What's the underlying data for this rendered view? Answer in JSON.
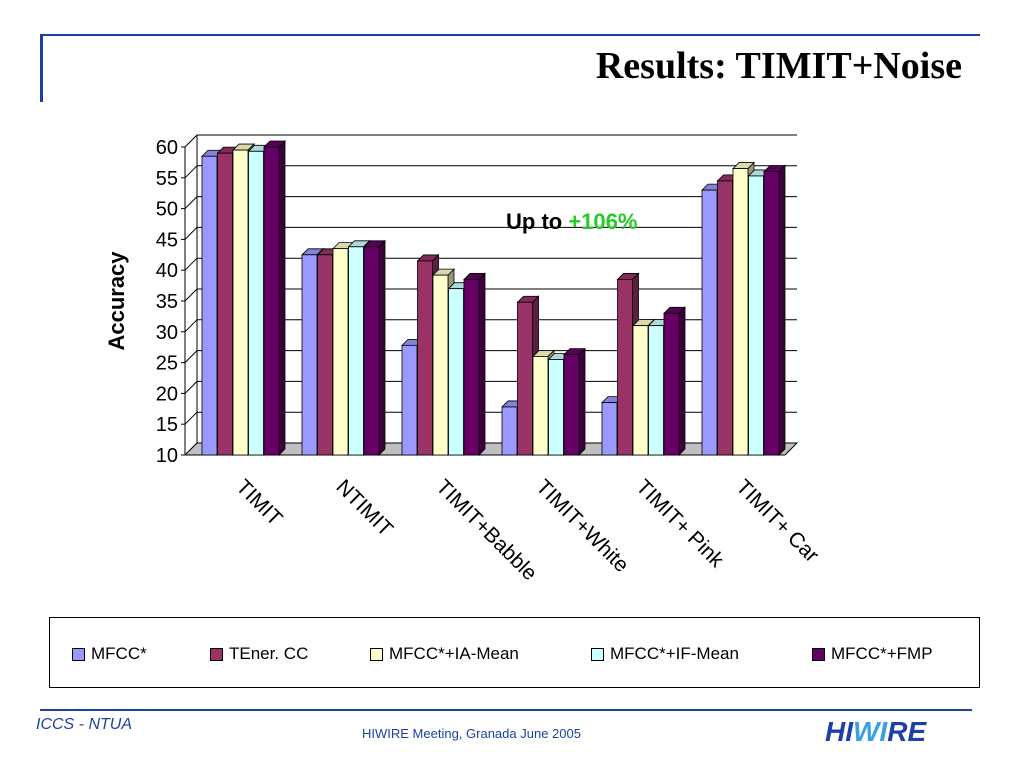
{
  "slide": {
    "title": "Results: TIMIT+Noise"
  },
  "chart_data": {
    "type": "bar",
    "title": "",
    "xlabel": "",
    "ylabel": "Accuracy",
    "ylim": [
      10,
      60
    ],
    "yticks": [
      10,
      15,
      20,
      25,
      30,
      35,
      40,
      45,
      50,
      55,
      60
    ],
    "grid": true,
    "legend_position": "bottom",
    "categories": [
      "TIMIT",
      "NTIMIT",
      "TIMIT+Babble",
      "TIMIT+White",
      "TIMIT+ Pink",
      "TIMIT+ Car"
    ],
    "series": [
      {
        "name": "MFCC*",
        "color": "#9999ff",
        "values": [
          58.5,
          42.5,
          27.8,
          17.8,
          18.5,
          53.0
        ]
      },
      {
        "name": "TEner. CC",
        "color": "#993366",
        "values": [
          59.0,
          42.5,
          41.5,
          34.8,
          38.5,
          54.5
        ]
      },
      {
        "name": "MFCC*+IA-Mean",
        "color": "#ffffcc",
        "values": [
          59.5,
          43.5,
          39.2,
          26.0,
          31.0,
          56.5
        ]
      },
      {
        "name": "MFCC*+IF-Mean",
        "color": "#ccffff",
        "values": [
          59.3,
          43.8,
          37.0,
          25.5,
          31.0,
          55.3
        ]
      },
      {
        "name": "MFCC*+FMP",
        "color": "#660066",
        "values": [
          60.0,
          43.8,
          38.5,
          26.3,
          33.0,
          56.0
        ]
      }
    ],
    "annotation": {
      "prefix": "Up to ",
      "highlight": "+106%",
      "highlight_color": "#22cc22"
    }
  },
  "footer": {
    "left": "ICCS - NTUA",
    "center": "HIWIRE Meeting, Granada June 2005",
    "logo_part1": "HI",
    "logo_part2": "WI",
    "logo_part3": "RE"
  }
}
